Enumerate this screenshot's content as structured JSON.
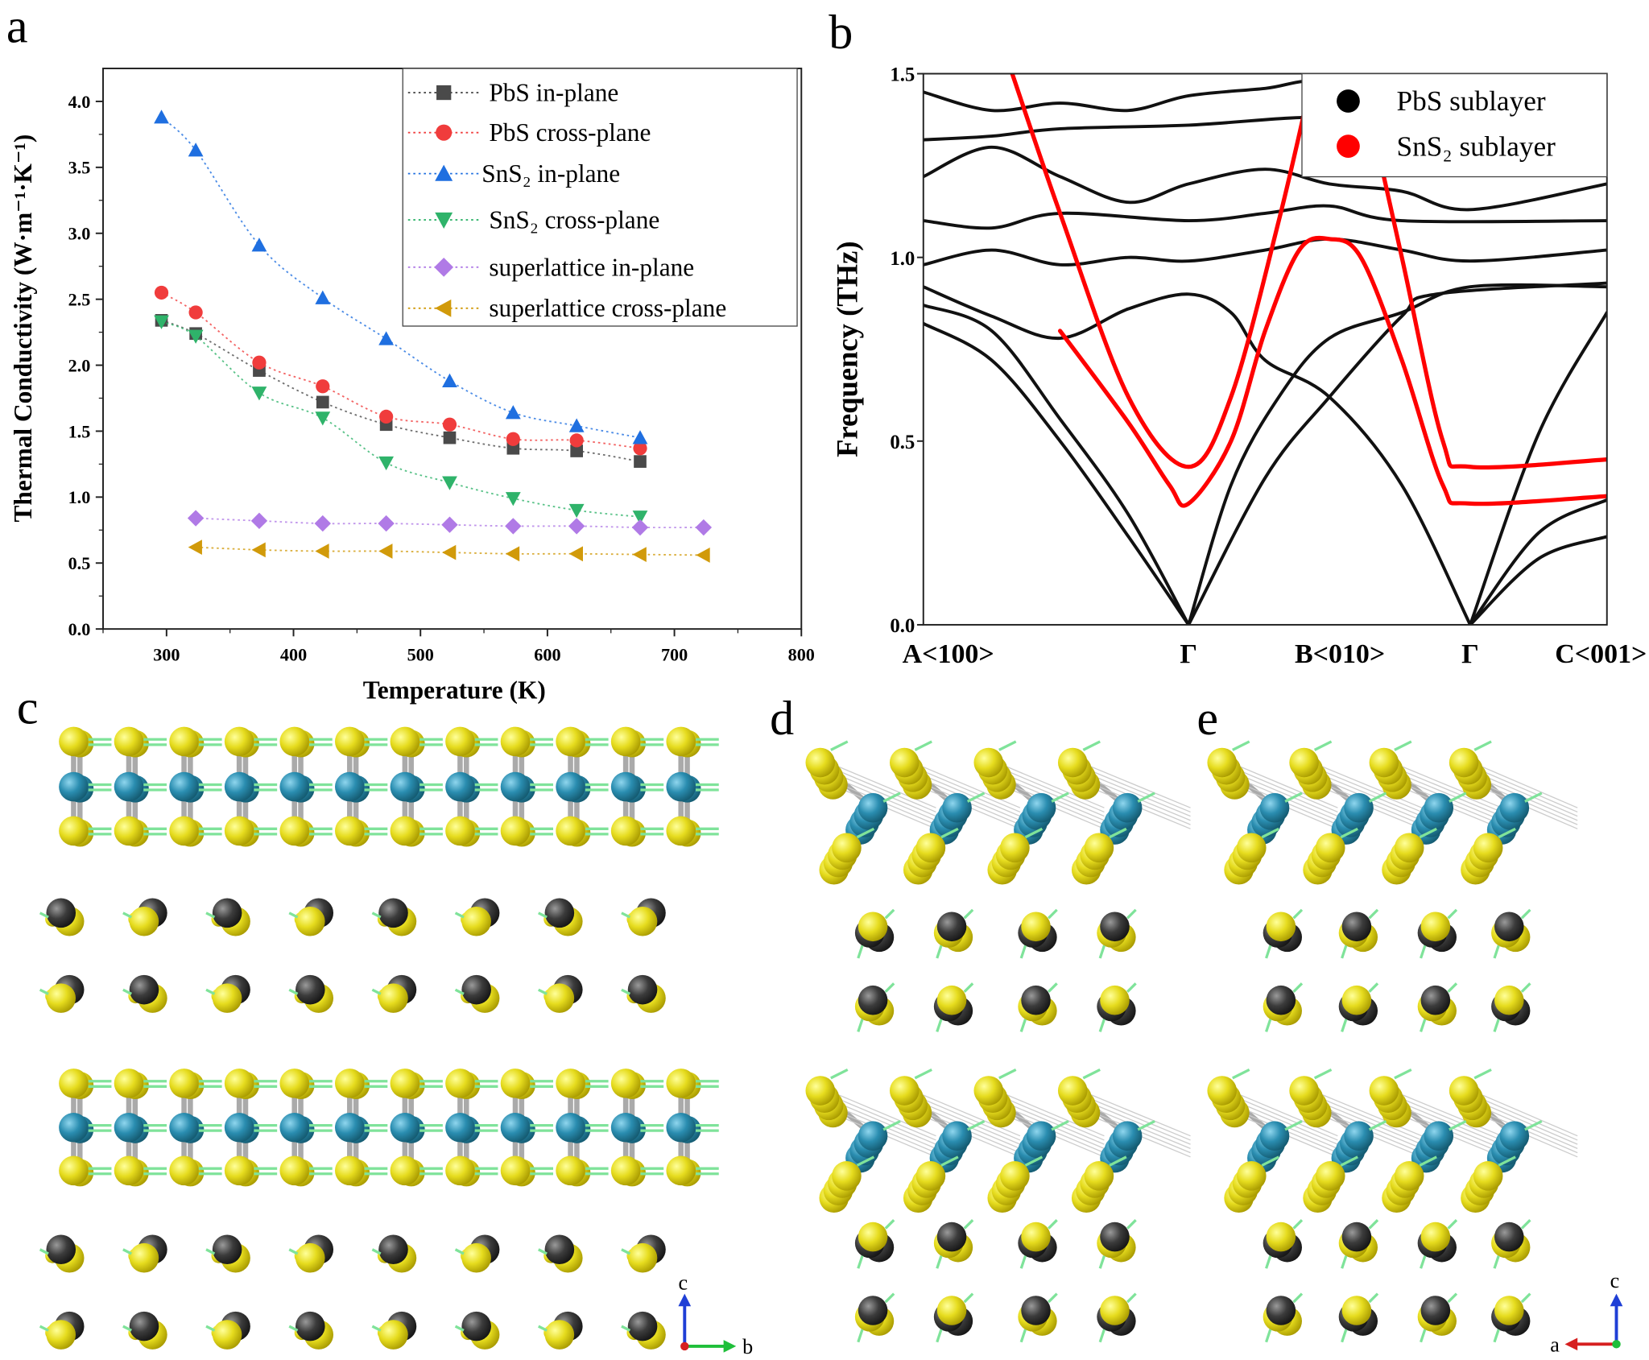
{
  "panels": {
    "a": "a",
    "b": "b",
    "c": "c",
    "d": "d",
    "e": "e"
  },
  "colors": {
    "S": "#e6dc1e",
    "Sn": "#2a8db0",
    "Pb": "#3c3c3c",
    "arrow": "#7fe39a",
    "axis_c": "#1f3fd6",
    "axis_b": "#1fbf3a",
    "axis_a": "#d61f1f"
  },
  "structure_axes": {
    "c_panel": {
      "up": "c",
      "right": "b"
    },
    "e_panel": {
      "up": "c",
      "left": "a"
    }
  },
  "chart_data": [
    {
      "type": "line",
      "xlabel": "Temperature (K)",
      "ylabel": "Thermal Conductivity (W·m⁻¹·K⁻¹)",
      "xlim": [
        250,
        800
      ],
      "ylim": [
        0,
        4.25
      ],
      "xticks": [
        300,
        400,
        500,
        600,
        700,
        800
      ],
      "yticks": [
        "0.0",
        "0.5",
        "1.0",
        "1.5",
        "2.0",
        "2.5",
        "3.0",
        "3.5",
        "4.0"
      ],
      "grid": false,
      "legend_position": "top-right",
      "series": [
        {
          "name": "PbS in-plane",
          "marker": "square",
          "color": "#4a4a4a",
          "x": [
            296,
            323,
            373,
            423,
            473,
            523,
            573,
            623,
            673
          ],
          "y": [
            2.34,
            2.24,
            1.96,
            1.72,
            1.55,
            1.45,
            1.37,
            1.35,
            1.27
          ]
        },
        {
          "name": "PbS cross-plane",
          "marker": "circle",
          "color": "#f03c3c",
          "x": [
            296,
            323,
            373,
            423,
            473,
            523,
            573,
            623,
            673
          ],
          "y": [
            2.55,
            2.4,
            2.02,
            1.84,
            1.61,
            1.55,
            1.44,
            1.43,
            1.37
          ]
        },
        {
          "name": "SnS₂ in-plane",
          "marker": "triangle-up",
          "color": "#1f6fe0",
          "x": [
            296,
            323,
            373,
            423,
            473,
            523,
            573,
            623,
            673
          ],
          "y": [
            3.88,
            3.63,
            2.91,
            2.51,
            2.2,
            1.88,
            1.64,
            1.54,
            1.45
          ]
        },
        {
          "name": "SnS₂ cross-plane",
          "marker": "triangle-down",
          "color": "#2fb36a",
          "x": [
            296,
            323,
            373,
            423,
            473,
            523,
            573,
            623,
            673
          ],
          "y": [
            2.33,
            2.22,
            1.79,
            1.6,
            1.26,
            1.11,
            0.99,
            0.9,
            0.85
          ]
        },
        {
          "name": "superlattice in-plane",
          "marker": "diamond",
          "color": "#b07ae6",
          "x": [
            323,
            373,
            423,
            473,
            523,
            573,
            623,
            673,
            723
          ],
          "y": [
            0.84,
            0.82,
            0.8,
            0.8,
            0.79,
            0.78,
            0.78,
            0.77,
            0.77
          ]
        },
        {
          "name": "superlattice cross-plane",
          "marker": "triangle-left",
          "color": "#d19a0a",
          "x": [
            323,
            373,
            423,
            473,
            523,
            573,
            623,
            673,
            723
          ],
          "y": [
            0.62,
            0.6,
            0.59,
            0.59,
            0.58,
            0.57,
            0.57,
            0.565,
            0.56
          ]
        }
      ]
    },
    {
      "type": "line",
      "ylabel": "Frequency (THz)",
      "ylim": [
        0,
        1.5
      ],
      "yticks": [
        "0.0",
        "0.5",
        "1.0",
        "1.5"
      ],
      "kpoints": [
        {
          "label": "A<100>",
          "k": 0
        },
        {
          "label": "Γ",
          "k": 0.388
        },
        {
          "label": "B<010>",
          "k": 0.594
        },
        {
          "label": "Γ",
          "k": 0.8
        },
        {
          "label": "C<001>",
          "k": 1
        }
      ],
      "legend_position": "top-right",
      "legend": [
        {
          "name": "PbS sublayer",
          "color": "#000000"
        },
        {
          "name": "SnS₂ sublayer",
          "color": "#ff0000"
        }
      ],
      "bands": [
        {
          "sublayer": "PbS",
          "points": [
            [
              0,
              0.82
            ],
            [
              0.1,
              0.72
            ],
            [
              0.2,
              0.5
            ],
            [
              0.3,
              0.24
            ],
            [
              0.388,
              0
            ]
          ]
        },
        {
          "sublayer": "PbS",
          "points": [
            [
              0,
              0.87
            ],
            [
              0.1,
              0.8
            ],
            [
              0.2,
              0.56
            ],
            [
              0.3,
              0.3
            ],
            [
              0.388,
              0
            ]
          ]
        },
        {
          "sublayer": "PbS",
          "points": [
            [
              0,
              0.92
            ],
            [
              0.1,
              0.84
            ],
            [
              0.2,
              0.78
            ],
            [
              0.3,
              0.86
            ],
            [
              0.388,
              0.9
            ],
            [
              0.45,
              0.85
            ],
            [
              0.5,
              0.72
            ],
            [
              0.594,
              0.62
            ],
            [
              0.7,
              0.38
            ],
            [
              0.8,
              0
            ]
          ]
        },
        {
          "sublayer": "PbS",
          "points": [
            [
              0.388,
              0
            ],
            [
              0.45,
              0.38
            ],
            [
              0.52,
              0.62
            ],
            [
              0.594,
              0.78
            ],
            [
              0.7,
              0.85
            ],
            [
              0.8,
              0.92
            ],
            [
              1,
              0.92
            ]
          ]
        },
        {
          "sublayer": "PbS",
          "points": [
            [
              0.388,
              0
            ],
            [
              0.5,
              0.4
            ],
            [
              0.594,
              0.62
            ],
            [
              0.7,
              0.84
            ],
            [
              0.75,
              0.9
            ],
            [
              1,
              0.93
            ]
          ]
        },
        {
          "sublayer": "PbS",
          "points": [
            [
              0.8,
              0
            ],
            [
              0.9,
              0.52
            ],
            [
              1,
              0.85
            ]
          ]
        },
        {
          "sublayer": "PbS",
          "points": [
            [
              0.8,
              0
            ],
            [
              0.9,
              0.25
            ],
            [
              1,
              0.34
            ]
          ]
        },
        {
          "sublayer": "PbS",
          "points": [
            [
              0.8,
              0
            ],
            [
              0.9,
              0.18
            ],
            [
              1,
              0.24
            ]
          ]
        },
        {
          "sublayer": "PbS",
          "points": [
            [
              0,
              0.98
            ],
            [
              0.1,
              1.02
            ],
            [
              0.2,
              0.98
            ],
            [
              0.3,
              1.0
            ],
            [
              0.388,
              0.99
            ],
            [
              0.5,
              1.02
            ],
            [
              0.594,
              1.05
            ],
            [
              0.7,
              1.02
            ],
            [
              0.8,
              0.99
            ],
            [
              1,
              1.02
            ]
          ]
        },
        {
          "sublayer": "PbS",
          "points": [
            [
              0,
              1.1
            ],
            [
              0.1,
              1.08
            ],
            [
              0.2,
              1.12
            ],
            [
              0.388,
              1.1
            ],
            [
              0.5,
              1.12
            ],
            [
              0.594,
              1.14
            ],
            [
              0.7,
              1.1
            ],
            [
              1,
              1.1
            ]
          ]
        },
        {
          "sublayer": "PbS",
          "points": [
            [
              0,
              1.22
            ],
            [
              0.1,
              1.3
            ],
            [
              0.2,
              1.22
            ],
            [
              0.3,
              1.15
            ],
            [
              0.388,
              1.2
            ],
            [
              0.5,
              1.24
            ],
            [
              0.594,
              1.2
            ],
            [
              0.7,
              1.18
            ],
            [
              0.8,
              1.13
            ],
            [
              1,
              1.2
            ]
          ]
        },
        {
          "sublayer": "PbS",
          "points": [
            [
              0,
              1.32
            ],
            [
              0.1,
              1.33
            ],
            [
              0.2,
              1.35
            ],
            [
              0.388,
              1.36
            ],
            [
              0.594,
              1.38
            ],
            [
              0.7,
              1.32
            ],
            [
              1,
              1.3
            ]
          ]
        },
        {
          "sublayer": "PbS",
          "points": [
            [
              0,
              1.45
            ],
            [
              0.1,
              1.4
            ],
            [
              0.2,
              1.42
            ],
            [
              0.3,
              1.4
            ],
            [
              0.388,
              1.44
            ],
            [
              0.5,
              1.46
            ],
            [
              0.594,
              1.48
            ],
            [
              0.8,
              1.42
            ],
            [
              1,
              1.45
            ]
          ]
        },
        {
          "sublayer": "SnS₂",
          "points": [
            [
              0.2,
              0.8
            ],
            [
              0.3,
              0.55
            ],
            [
              0.36,
              0.38
            ],
            [
              0.388,
              0.33
            ],
            [
              0.45,
              0.5
            ],
            [
              0.5,
              0.8
            ],
            [
              0.55,
              1.02
            ],
            [
              0.594,
              1.05
            ],
            [
              0.64,
              1.0
            ],
            [
              0.7,
              0.72
            ],
            [
              0.76,
              0.38
            ],
            [
              0.8,
              0.33
            ],
            [
              1,
              0.35
            ]
          ]
        },
        {
          "sublayer": "SnS₂",
          "points": [
            [
              0.13,
              1.5
            ],
            [
              0.2,
              1.12
            ],
            [
              0.3,
              0.62
            ],
            [
              0.388,
              0.43
            ],
            [
              0.45,
              0.62
            ],
            [
              0.52,
              1.1
            ],
            [
              0.57,
              1.5
            ]
          ]
        },
        {
          "sublayer": "SnS₂",
          "points": [
            [
              0.64,
              1.5
            ],
            [
              0.7,
              1.0
            ],
            [
              0.76,
              0.5
            ],
            [
              0.8,
              0.43
            ],
            [
              1,
              0.45
            ]
          ]
        }
      ]
    }
  ]
}
